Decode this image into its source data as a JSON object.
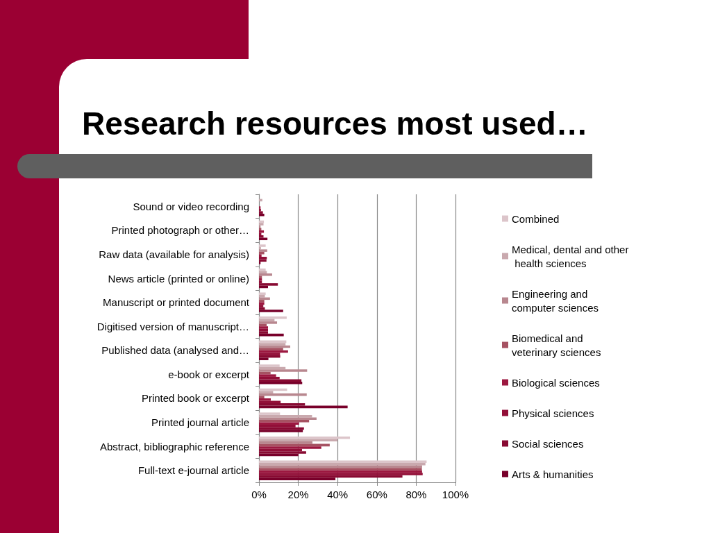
{
  "chart_data": {
    "type": "bar",
    "orientation": "horizontal",
    "title": "Research resources most used…",
    "categories": [
      "Sound or video recording",
      "Printed photograph or other…",
      "Raw data (available for analysis)",
      "News article (printed or online)",
      "Manuscript or printed document",
      "Digitised version of manuscript…",
      "Published data (analysed and…",
      "e-book or excerpt",
      "Printed book or excerpt",
      "Printed journal article",
      "Abstract, bibliographic reference",
      "Full-text e-journal article"
    ],
    "series": [
      {
        "name": "Combined",
        "color": "#dcc5ca",
        "values": [
          null,
          2.5,
          3.4,
          3.4,
          3.4,
          14.1,
          13.9,
          10.5,
          14.3,
          10.7,
          46.3,
          85.3
        ]
      },
      {
        "name": "Medical, dental and other health sciences",
        "color": "#c9a9ae",
        "values": [
          1.7,
          2.3,
          1,
          4,
          3,
          7.9,
          13.5,
          13.5,
          7.2,
          27,
          40,
          84.7
        ]
      },
      {
        "name": "Engineering and computer sciences",
        "color": "#b8878f",
        "values": [
          null,
          0.8,
          4.2,
          6.7,
          5.6,
          9.2,
          15.9,
          24.5,
          24.3,
          29.3,
          27.2,
          83
        ]
      },
      {
        "name": "Biomedical and veterinary sciences",
        "color": "#a65262",
        "values": [
          null,
          1.2,
          2.7,
          1.5,
          2.7,
          3.9,
          12.3,
          5.9,
          2.7,
          25.5,
          36,
          82.9
        ]
      },
      {
        "name": "Biological sciences",
        "color": "#9c1840",
        "values": [
          0.8,
          2.5,
          1.3,
          1.5,
          2.7,
          4.6,
          14.8,
          8.7,
          6,
          20.4,
          31.7,
          83
        ]
      },
      {
        "name": "Physical sciences",
        "color": "#920f38",
        "values": [
          1,
          1.2,
          4,
          1.5,
          2.2,
          4.6,
          10.7,
          10.5,
          11,
          18.6,
          21.9,
          83.3
        ]
      },
      {
        "name": "Social sciences",
        "color": "#880a32",
        "values": [
          2,
          2.3,
          3.8,
          9.6,
          3,
          4.6,
          10.8,
          21.6,
          23.4,
          22.9,
          24,
          73
        ]
      },
      {
        "name": "Arts & humanities",
        "color": "#78002a",
        "values": [
          2.7,
          4.3,
          0.8,
          4.6,
          12.3,
          12.6,
          4.8,
          22,
          45.1,
          22.3,
          20.1,
          38.9
        ]
      }
    ],
    "xlim": [
      0,
      100
    ],
    "xticks": [
      {
        "value": 0,
        "label": "0%"
      },
      {
        "value": 20,
        "label": "20%"
      },
      {
        "value": 40,
        "label": "40%"
      },
      {
        "value": 60,
        "label": "60%"
      },
      {
        "value": 80,
        "label": "80%"
      },
      {
        "value": 100,
        "label": "100%"
      }
    ],
    "grid": "x",
    "legend": "right"
  }
}
